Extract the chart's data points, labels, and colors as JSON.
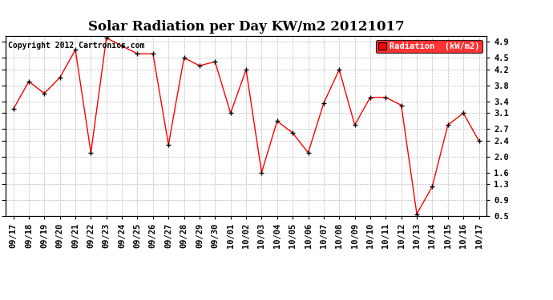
{
  "title": "Solar Radiation per Day KW/m2 20121017",
  "copyright": "Copyright 2012 Cartronics.com",
  "legend_label": "Radiation  (kW/m2)",
  "x_labels": [
    "09/17",
    "09/18",
    "09/19",
    "09/20",
    "09/21",
    "09/22",
    "09/23",
    "09/24",
    "09/25",
    "09/26",
    "09/27",
    "09/28",
    "09/29",
    "09/30",
    "10/01",
    "10/02",
    "10/03",
    "10/04",
    "10/05",
    "10/06",
    "10/07",
    "10/08",
    "10/09",
    "10/10",
    "10/11",
    "10/12",
    "10/13",
    "10/14",
    "10/15",
    "10/16",
    "10/17"
  ],
  "y_values": [
    3.2,
    3.9,
    3.6,
    4.0,
    4.7,
    2.1,
    5.0,
    4.8,
    4.6,
    4.6,
    2.3,
    4.5,
    4.3,
    4.4,
    3.1,
    4.2,
    1.6,
    2.9,
    2.6,
    2.1,
    3.35,
    4.2,
    2.8,
    3.5,
    3.5,
    3.3,
    0.55,
    1.25,
    2.8,
    3.1,
    2.4
  ],
  "ylim_min": 0.5,
  "ylim_max": 5.05,
  "yticks": [
    0.5,
    0.9,
    1.3,
    1.6,
    2.0,
    2.4,
    2.7,
    3.1,
    3.4,
    3.8,
    4.2,
    4.5,
    4.9
  ],
  "line_color": "#ff0000",
  "marker_color": "#000000",
  "bg_color": "#ffffff",
  "plot_bg_color": "#ffffff",
  "grid_color": "#bbbbbb",
  "title_fontsize": 12,
  "tick_fontsize": 7.5,
  "copyright_fontsize": 7,
  "legend_bg": "#ff0000",
  "legend_text_color": "#ffffff"
}
